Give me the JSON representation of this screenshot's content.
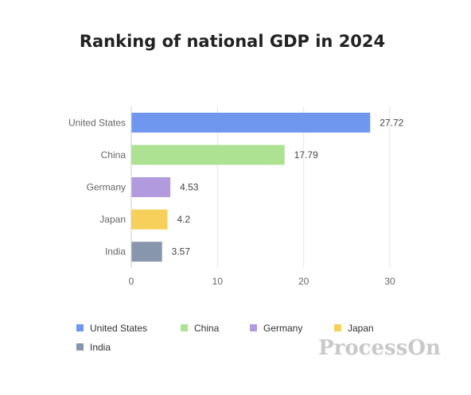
{
  "chart_data": {
    "type": "bar",
    "orientation": "horizontal",
    "title": "Ranking of national GDP in 2024",
    "xlabel": "",
    "ylabel": "",
    "categories": [
      "United States",
      "China",
      "Germany",
      "Japan",
      "India"
    ],
    "values": [
      27.72,
      17.79,
      4.53,
      4.2,
      3.57
    ],
    "value_labels": [
      "27.72",
      "17.79",
      "4.53",
      "4.2",
      "3.57"
    ],
    "colors": [
      "#6f97f0",
      "#aee293",
      "#b29ade",
      "#f6d05a",
      "#8796ad"
    ],
    "xlim": [
      0,
      30
    ],
    "x_ticks": [
      "0",
      "10",
      "20",
      "30"
    ],
    "grid": "vertical",
    "legend": {
      "placement": "bottom",
      "entries": [
        "United States",
        "China",
        "Germany",
        "Japan",
        "India"
      ]
    }
  },
  "watermark": "ProcessOn"
}
